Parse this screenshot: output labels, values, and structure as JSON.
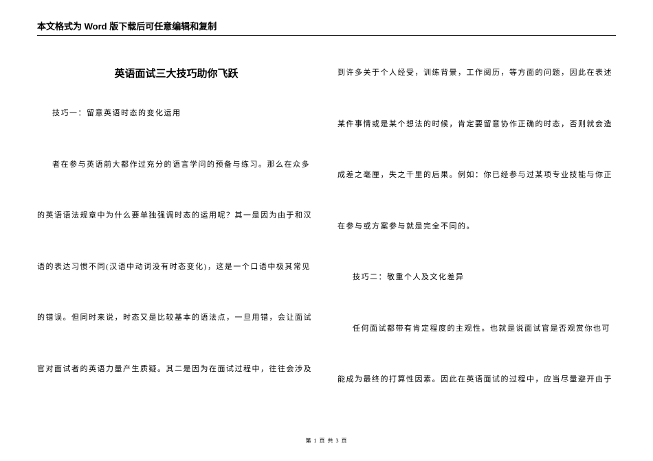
{
  "header": {
    "notice": "本文格式为 Word 版下载后可任意编辑和复制"
  },
  "document": {
    "title": "英语面试三大技巧助你飞跃",
    "left_column": [
      "技巧一：留意英语时态的变化运用",
      "者在参与英语前大都作过充分的语言学问的预备与练习。那么在众多",
      "的英语语法规章中为什么要单独强调时态的运用呢？其一是因为由于和汉",
      "语的表达习惯不同(汉语中动词没有时态变化)，这是一个口语中极其常见",
      "的错误。但同时来说，时态又是比较基本的语法点，一旦用错，会让面试",
      "官对面试者的英语力量产生质疑。其二是因为在面试过程中，往往会涉及"
    ],
    "right_column": [
      "到许多关于个人经受，训练背景，工作阅历，等方面的问题，因此在表述",
      "某件事情或是某个想法的时候，肯定要留意协作正确的时态，否则就会造",
      "成差之毫厘，失之千里的后果。例如：你已经参与过某项专业技能与你正",
      "在参与或方案参与就是完全不同的。",
      "技巧二：敬重个人及文化差异",
      "任何面试都带有肯定程度的主观性。也就是说面试官是否观赏你也可",
      "能成为最终的打算性因素。因此在英语面试的过程中，应当尽量避开由于"
    ]
  },
  "footer": {
    "page_label": "第 1 页 共 3 页"
  },
  "colors": {
    "background": "#ffffff",
    "text": "#000000",
    "rule": "#000000"
  },
  "typography": {
    "header_fontsize": 13,
    "title_fontsize": 15,
    "body_fontsize": 11,
    "footer_fontsize": 8,
    "body_letter_spacing": 1.5
  }
}
